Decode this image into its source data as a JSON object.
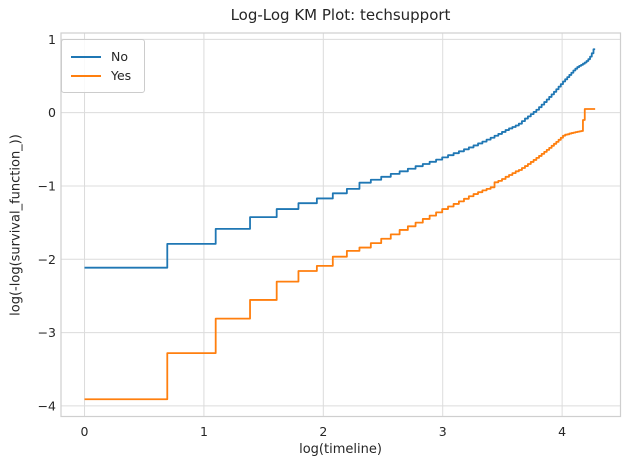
{
  "figure": {
    "title": "Log-Log KM Plot: techsupport"
  },
  "colors": {
    "grid": "#dcdcdc",
    "spine": "#cfcfcf",
    "text": "#262626",
    "background": "#ffffff"
  },
  "chart_data": {
    "type": "line",
    "subtype": "step-post",
    "title": "Log-Log KM Plot: techsupport",
    "xlabel": "log(timeline)",
    "ylabel": "log(-log(survival_function_))",
    "x_transform": "natural log of timeline (months 1..72)",
    "xlim": [
      -0.197,
      4.489
    ],
    "ylim": [
      -4.145,
      1.087
    ],
    "x_ticks": [
      0,
      1,
      2,
      3,
      4
    ],
    "x_tick_labels": [
      "0",
      "1",
      "2",
      "3",
      "4"
    ],
    "y_ticks": [
      1,
      0,
      -1,
      -2,
      -3,
      -4
    ],
    "y_tick_labels": [
      "1",
      "0",
      "−1",
      "−2",
      "−3",
      "−4"
    ],
    "grid": true,
    "legend": {
      "position": "upper left",
      "entries": [
        "No",
        "Yes"
      ]
    },
    "timeline": [
      1,
      2,
      3,
      4,
      5,
      6,
      7,
      8,
      9,
      10,
      11,
      12,
      13,
      14,
      15,
      16,
      17,
      18,
      19,
      20,
      21,
      22,
      23,
      24,
      25,
      26,
      27,
      28,
      29,
      30,
      31,
      32,
      33,
      34,
      35,
      36,
      37,
      38,
      39,
      40,
      41,
      42,
      43,
      44,
      45,
      46,
      47,
      48,
      49,
      50,
      51,
      52,
      53,
      54,
      55,
      56,
      57,
      58,
      59,
      60,
      61,
      62,
      63,
      64,
      65,
      66,
      67,
      68,
      69,
      70,
      71,
      72
    ],
    "series": [
      {
        "name": "No",
        "color": "#1f77b4",
        "values": [
          -2.115,
          -1.79,
          -1.585,
          -1.425,
          -1.315,
          -1.235,
          -1.17,
          -1.1,
          -1.04,
          -0.955,
          -0.915,
          -0.875,
          -0.835,
          -0.8,
          -0.765,
          -0.73,
          -0.7,
          -0.67,
          -0.64,
          -0.61,
          -0.58,
          -0.553,
          -0.527,
          -0.5,
          -0.474,
          -0.447,
          -0.42,
          -0.395,
          -0.368,
          -0.342,
          -0.315,
          -0.29,
          -0.263,
          -0.237,
          -0.215,
          -0.195,
          -0.175,
          -0.15,
          -0.115,
          -0.08,
          -0.05,
          -0.02,
          0.01,
          0.04,
          0.075,
          0.11,
          0.145,
          0.18,
          0.215,
          0.25,
          0.285,
          0.32,
          0.355,
          0.39,
          0.425,
          0.455,
          0.485,
          0.515,
          0.545,
          0.575,
          0.6,
          0.622,
          0.638,
          0.652,
          0.668,
          0.685,
          0.705,
          0.73,
          0.765,
          0.81,
          0.865,
          0.865
        ]
      },
      {
        "name": "Yes",
        "color": "#ff7f0e",
        "values": [
          -3.91,
          -3.28,
          -2.81,
          -2.555,
          -2.305,
          -2.16,
          -2.09,
          -1.965,
          -1.885,
          -1.84,
          -1.78,
          -1.72,
          -1.66,
          -1.6,
          -1.55,
          -1.5,
          -1.45,
          -1.405,
          -1.36,
          -1.315,
          -1.28,
          -1.245,
          -1.21,
          -1.175,
          -1.14,
          -1.11,
          -1.085,
          -1.06,
          -1.04,
          -1.018,
          -0.95,
          -0.93,
          -0.905,
          -0.875,
          -0.85,
          -0.825,
          -0.8,
          -0.782,
          -0.755,
          -0.728,
          -0.7,
          -0.672,
          -0.645,
          -0.617,
          -0.59,
          -0.562,
          -0.535,
          -0.507,
          -0.48,
          -0.452,
          -0.425,
          -0.398,
          -0.37,
          -0.342,
          -0.315,
          -0.3,
          -0.295,
          -0.285,
          -0.278,
          -0.272,
          -0.265,
          -0.26,
          -0.255,
          -0.25,
          -0.1,
          0.05,
          0.05,
          0.05,
          0.05,
          0.05,
          0.05,
          0.05
        ]
      }
    ]
  }
}
